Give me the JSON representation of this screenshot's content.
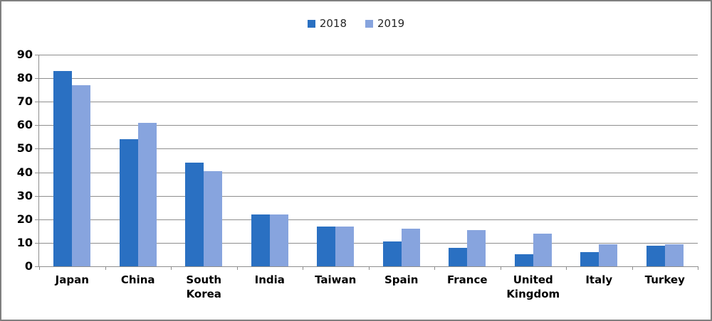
{
  "chart_data": {
    "type": "bar",
    "title": "",
    "xlabel": "",
    "ylabel": "",
    "categories": [
      "Japan",
      "China",
      "South Korea",
      "India",
      "Taiwan",
      "Spain",
      "France",
      "United Kingdom",
      "Italy",
      "Turkey"
    ],
    "series": [
      {
        "name": "2018",
        "color": "#2A70C2",
        "values": [
          83,
          54,
          44,
          22,
          17,
          10.7,
          8,
          5,
          6,
          8.7
        ]
      },
      {
        "name": "2019",
        "color": "#87A4DE",
        "values": [
          77,
          61,
          40.5,
          22,
          17,
          16,
          15.5,
          13.8,
          9.5,
          9.5
        ]
      }
    ],
    "ylim": [
      0,
      90
    ],
    "ytick_step": 10,
    "y_tick_labels": [
      "0",
      "10",
      "20",
      "30",
      "40",
      "50",
      "60",
      "70",
      "80",
      "90"
    ],
    "grid": true,
    "legend_position": "top-center"
  },
  "palette": {
    "series_2018": "#2A70C2",
    "series_2019": "#87A4DE",
    "gridline": "#8E8E8E",
    "axis_text": "#000000",
    "frame_border": "#7F7F7F",
    "background": "#FFFFFF"
  }
}
